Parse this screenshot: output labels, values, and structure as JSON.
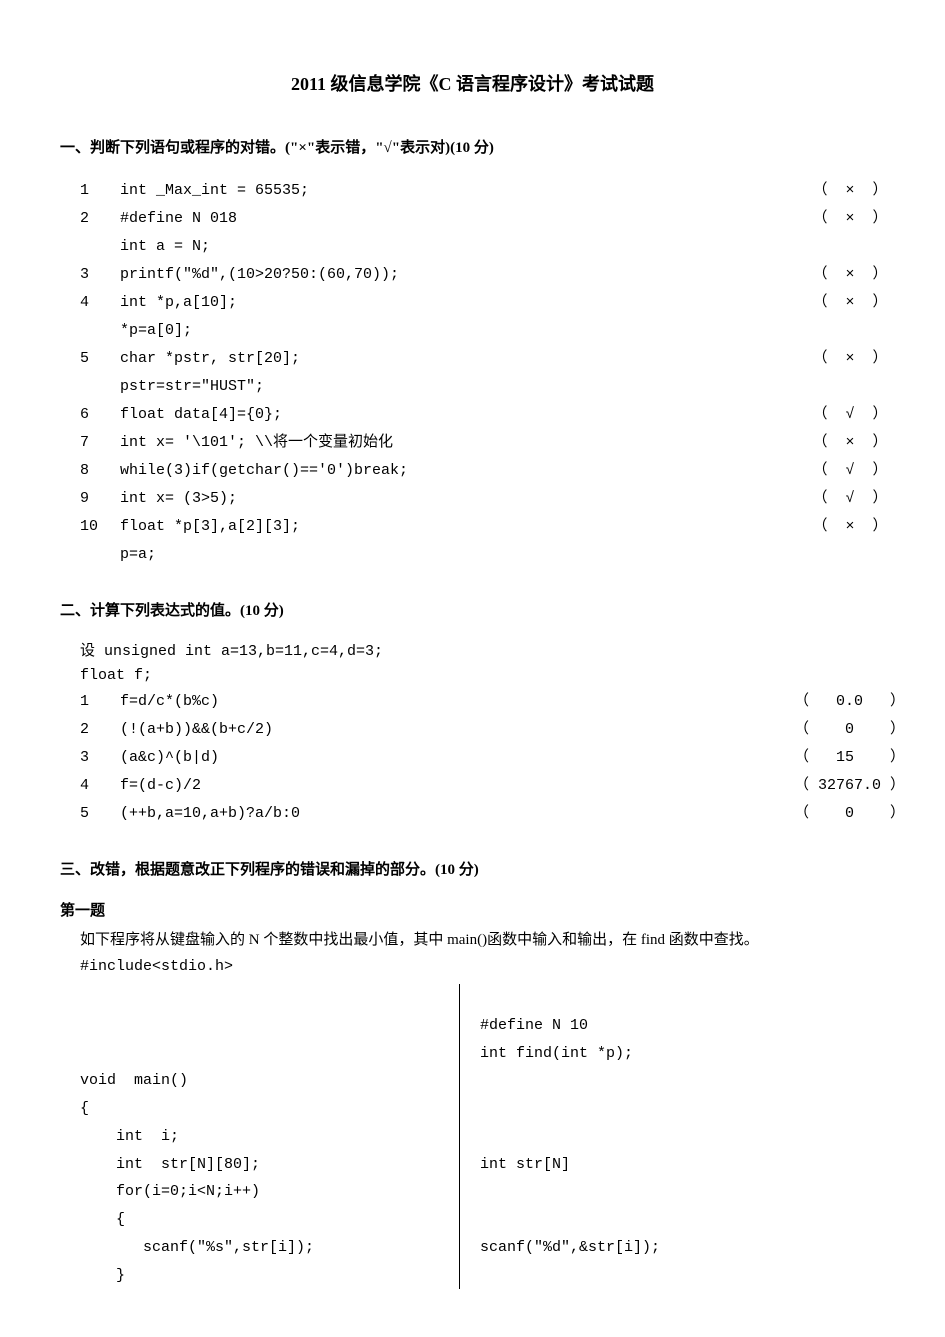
{
  "title": "2011 级信息学院《C 语言程序设计》考试试题",
  "section1": {
    "heading": "一、判断下列语句或程序的对错。(\"×\"表示错，\"√\"表示对)(10 分)",
    "items": [
      {
        "num": "1",
        "code": "int  _Max_int = 65535;",
        "ans": "（  ×  ）"
      },
      {
        "num": "2",
        "code": "#define  N  018",
        "ans": "（  ×  ）"
      },
      {
        "num": "",
        "code": "int  a = N;",
        "ans": ""
      },
      {
        "num": "3",
        "code": "printf(\"%d\",(10>20?50:(60,70));",
        "ans": "（  ×  ）"
      },
      {
        "num": "4",
        "code": "int  *p,a[10];",
        "ans": "（  ×  ）"
      },
      {
        "num": "",
        "code": "*p=a[0];",
        "ans": ""
      },
      {
        "num": "5",
        "code": "char  *pstr, str[20];",
        "ans": "（  ×  ）"
      },
      {
        "num": "",
        "code": "pstr=str=\"HUST\";",
        "ans": ""
      },
      {
        "num": "6",
        "code": "float  data[4]={0};",
        "ans": "（  √  ）"
      },
      {
        "num": "7",
        "code": "int  x= '\\101';   \\\\将一个变量初始化",
        "ans": "（  ×  ）"
      },
      {
        "num": "8",
        "code": "while(3)if(getchar()=='0')break;",
        "ans": "（  √  ）"
      },
      {
        "num": "9",
        "code": "int  x= (3>5);",
        "ans": "（  √  ）"
      },
      {
        "num": "10",
        "code": "float  *p[3],a[2][3];",
        "ans": "（  ×  ）"
      },
      {
        "num": "",
        "code": "p=a;",
        "ans": ""
      }
    ]
  },
  "section2": {
    "heading": "二、计算下列表达式的值。(10 分)",
    "preamble1": "设  unsigned int a=13,b=11,c=4,d=3;",
    "preamble2": "    float  f;",
    "items": [
      {
        "num": "1",
        "code": "f=d/c*(b%c)",
        "ans": "（   0.0   ）"
      },
      {
        "num": "2",
        "code": "(!(a+b))&&(b+c/2)",
        "ans": "（    0    ）"
      },
      {
        "num": "3",
        "code": "(a&c)^(b|d)",
        "ans": "（   15    ）"
      },
      {
        "num": "4",
        "code": "f=(d-c)/2",
        "ans": "（ 32767.0 ）"
      },
      {
        "num": "5",
        "code": "(++b,a=10,a+b)?a/b:0",
        "ans": "（    0    ）"
      }
    ]
  },
  "section3": {
    "heading": "三、改错，根据题意改正下列程序的错误和漏掉的部分。(10 分)",
    "sub": "第一题",
    "desc": "如下程序将从键盘输入的 N 个整数中找出最小值，其中 main()函数中输入和输出，在 find 函数中查找。",
    "include": "#include<stdio.h>",
    "left": [
      "",
      "",
      "",
      "void  main()",
      "{",
      "    int  i;",
      "    int  str[N][80];",
      "    for(i=0;i<N;i++)",
      "    {",
      "       scanf(\"%s\",str[i]);",
      "    }"
    ],
    "right": [
      "",
      "#define N 10",
      "int find(int *p);",
      "",
      "",
      "",
      "int str[N]",
      "",
      "",
      "scanf(\"%d\",&str[i]);",
      ""
    ]
  }
}
